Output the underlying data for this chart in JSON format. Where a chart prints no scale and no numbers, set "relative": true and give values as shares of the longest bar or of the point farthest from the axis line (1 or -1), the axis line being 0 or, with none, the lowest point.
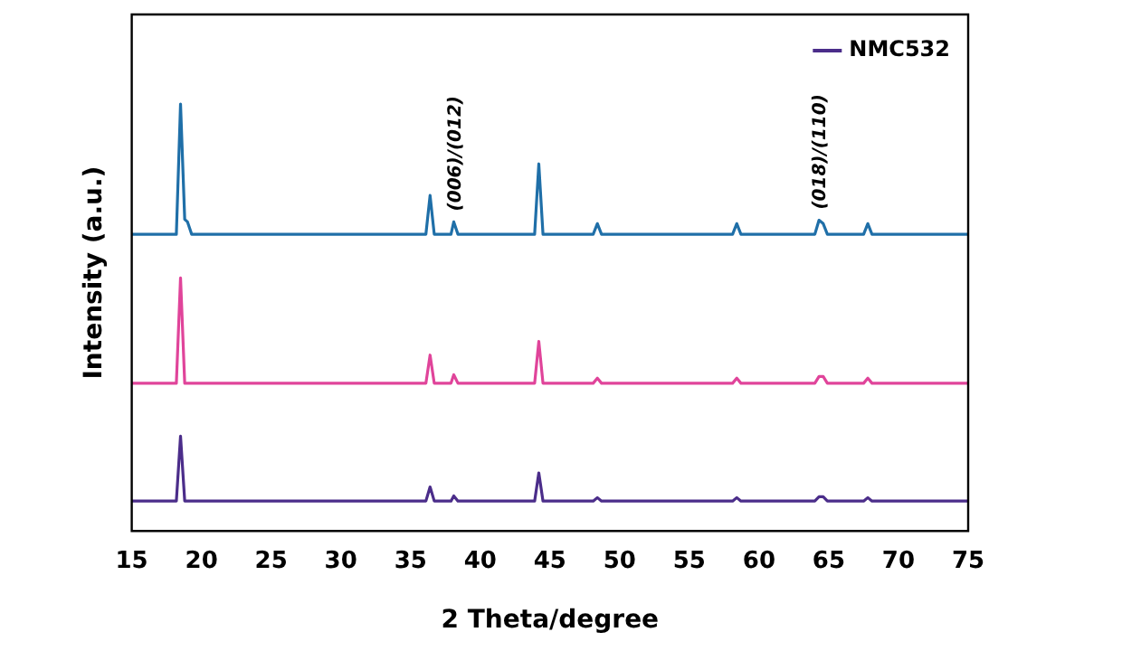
{
  "chart_data": {
    "type": "line",
    "xlabel": "2 Theta/degree",
    "ylabel": "Intensity (a.u.)",
    "relative": true,
    "x": [
      15,
      18.2,
      18.5,
      18.8,
      19.0,
      19.3,
      36.1,
      36.4,
      36.7,
      37.9,
      38.1,
      38.4,
      43.9,
      44.2,
      44.5,
      48.1,
      48.4,
      48.7,
      58.1,
      58.4,
      58.7,
      64.0,
      64.3,
      64.6,
      64.9,
      67.5,
      67.8,
      68.1,
      75
    ],
    "xlim": [
      15,
      75
    ],
    "xticks": [
      15,
      20,
      25,
      30,
      35,
      40,
      45,
      50,
      55,
      60,
      65,
      70,
      75
    ],
    "series": [
      {
        "color": "#1f6fa8",
        "values": [
          0.695,
          0.695,
          1.0,
          0.73,
          0.724,
          0.695,
          0.695,
          0.786,
          0.695,
          0.695,
          0.724,
          0.695,
          0.695,
          0.86,
          0.695,
          0.695,
          0.72,
          0.695,
          0.695,
          0.72,
          0.695,
          0.695,
          0.728,
          0.72,
          0.695,
          0.695,
          0.72,
          0.695,
          0.695
        ]
      },
      {
        "color": "#e0449a",
        "values": [
          0.346,
          0.346,
          0.593,
          0.346,
          0.346,
          0.346,
          0.346,
          0.412,
          0.346,
          0.346,
          0.366,
          0.346,
          0.346,
          0.444,
          0.346,
          0.346,
          0.358,
          0.346,
          0.346,
          0.358,
          0.346,
          0.346,
          0.362,
          0.362,
          0.346,
          0.346,
          0.358,
          0.346,
          0.346
        ]
      },
      {
        "name": "NMC532",
        "color": "#4b2d8a",
        "values": [
          0.07,
          0.07,
          0.222,
          0.07,
          0.07,
          0.07,
          0.07,
          0.103,
          0.07,
          0.07,
          0.082,
          0.07,
          0.07,
          0.136,
          0.07,
          0.07,
          0.078,
          0.07,
          0.07,
          0.078,
          0.07,
          0.07,
          0.08,
          0.08,
          0.07,
          0.07,
          0.078,
          0.07,
          0.07
        ]
      }
    ],
    "annotations": [
      {
        "text": "(006)/(012)",
        "x": 38.1,
        "y": 0.724
      },
      {
        "text": "(018)/(110)",
        "x": 64.3,
        "y": 0.728
      }
    ],
    "legend": "top right",
    "marker": "none",
    "line_style": "solid",
    "grid": false
  }
}
